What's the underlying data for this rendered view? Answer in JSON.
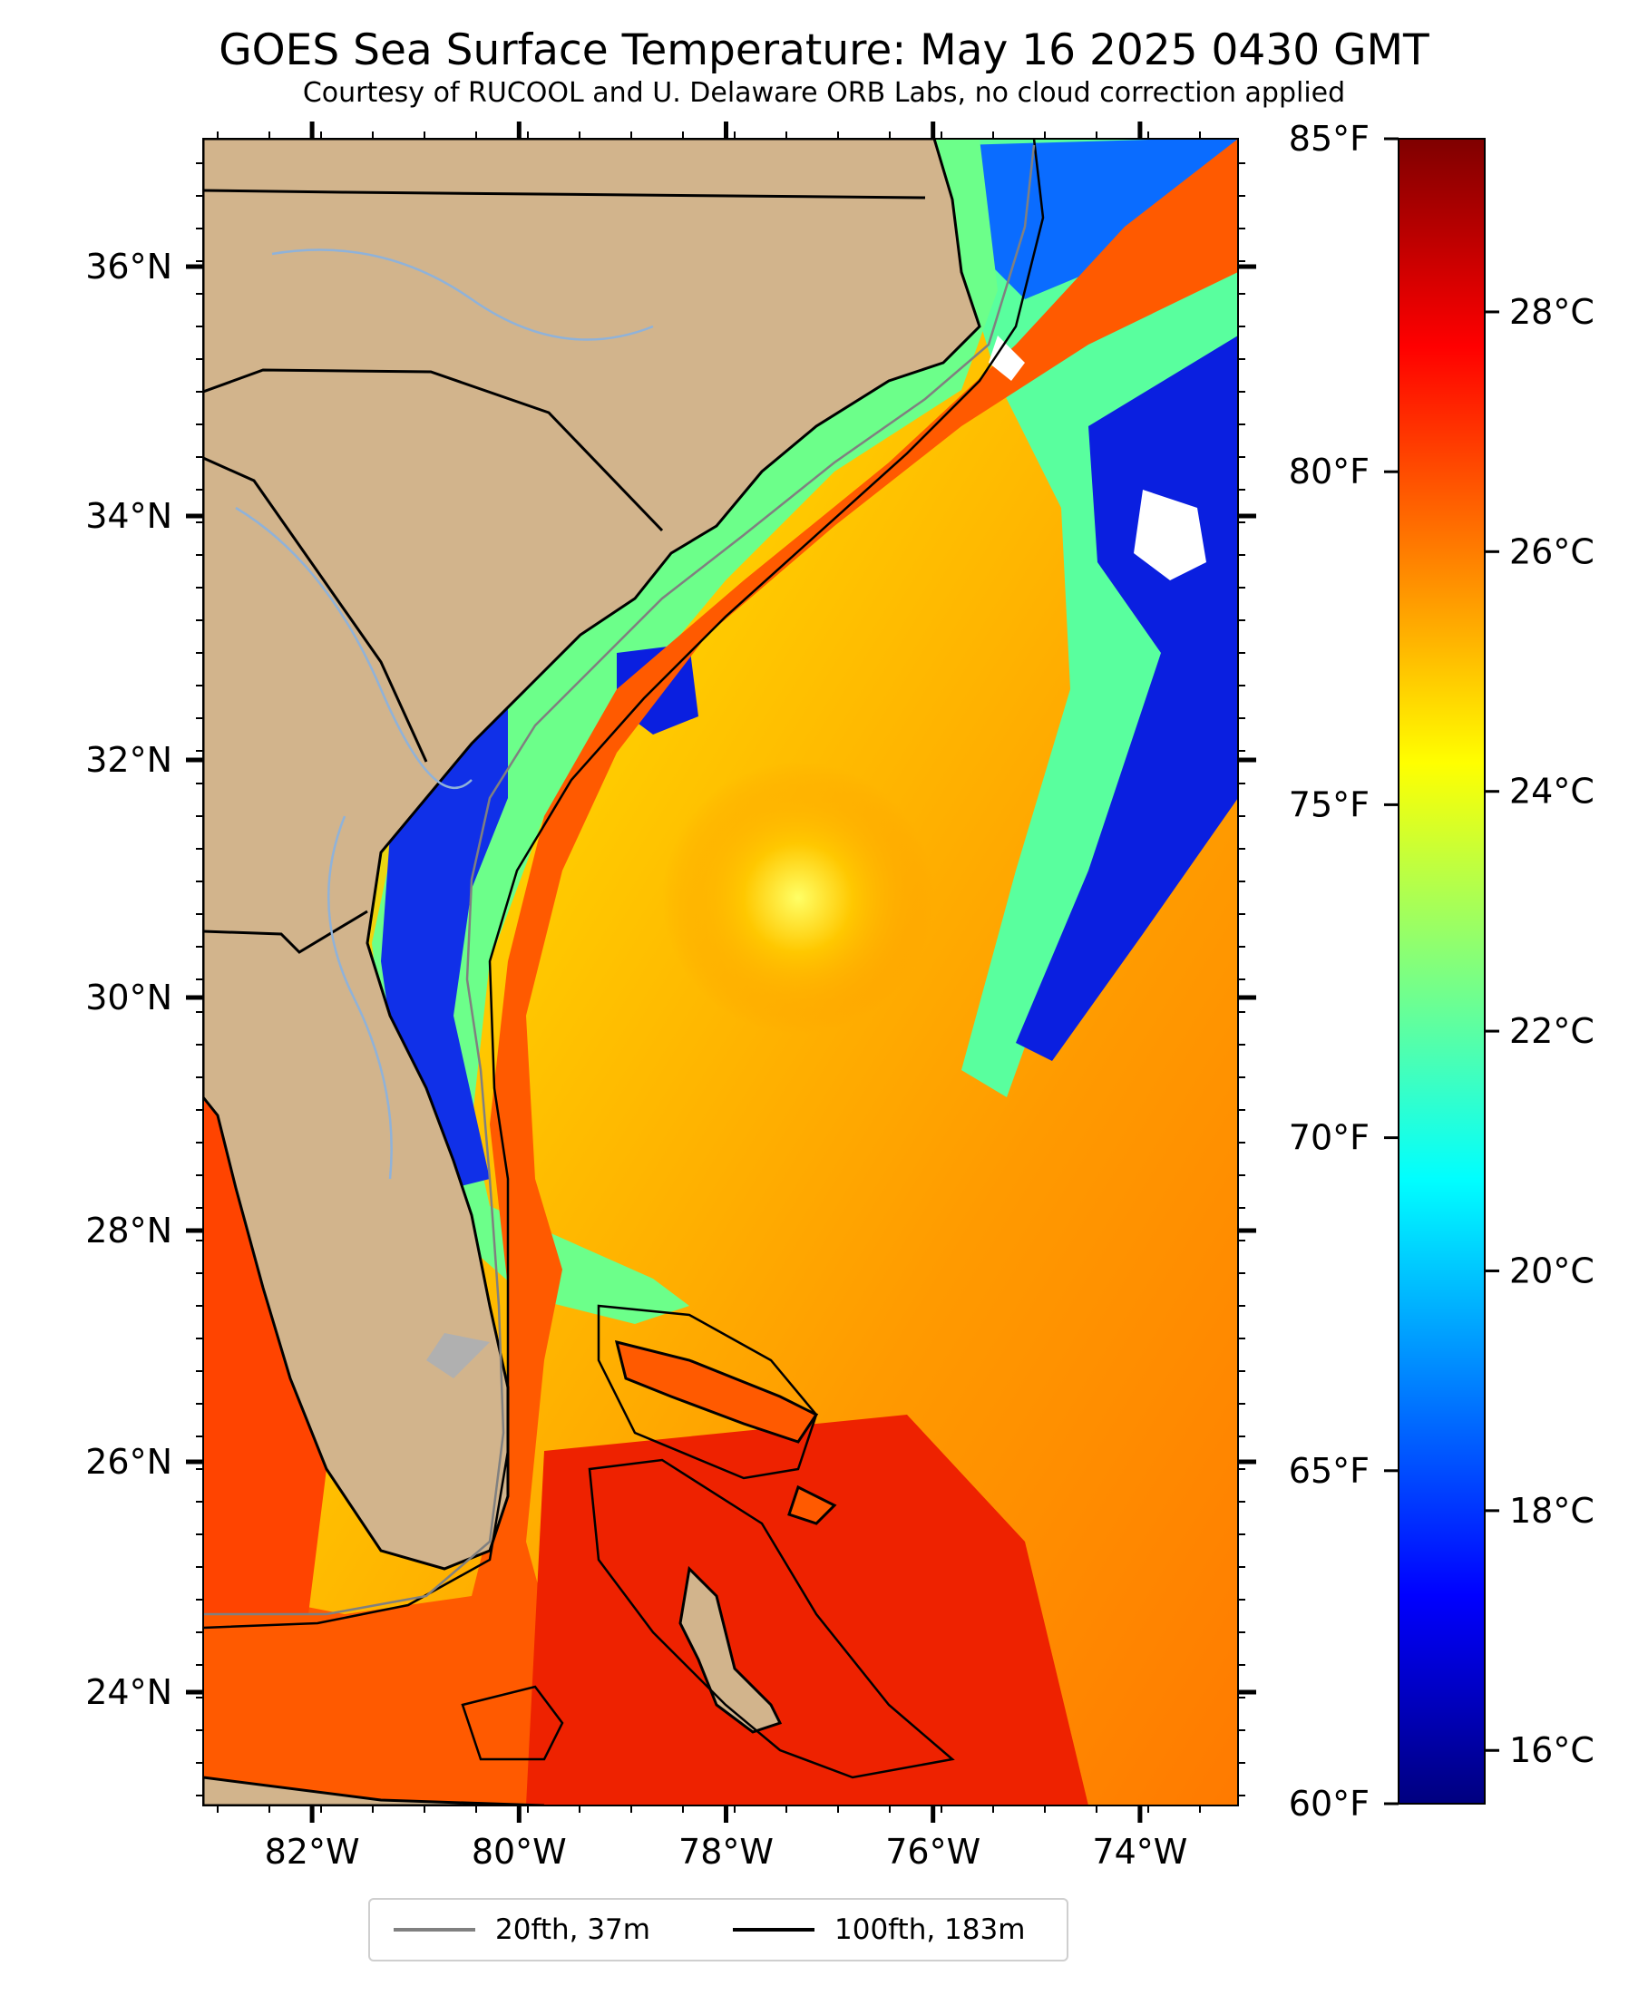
{
  "title": "GOES Sea Surface Temperature: May 16 2025 0430 GMT",
  "subtitle": "Courtesy of RUCOOL and U. Delaware ORB Labs, no cloud correction applied",
  "axes": {
    "lat_ticks": [
      "24°N",
      "26°N",
      "28°N",
      "30°N",
      "32°N",
      "34°N",
      "36°N"
    ],
    "lon_ticks": [
      "82°W",
      "80°W",
      "78°W",
      "76°W",
      "74°W"
    ]
  },
  "colorbar": {
    "fahrenheit_ticks": [
      "85°F",
      "80°F",
      "75°F",
      "70°F",
      "65°F",
      "60°F"
    ],
    "celsius_ticks": [
      "28°C",
      "26°C",
      "24°C",
      "22°C",
      "20°C",
      "18°C",
      "16°C"
    ],
    "colormap": [
      "#00007f",
      "#0000ff",
      "#007fff",
      "#00ffff",
      "#7fff7f",
      "#ffff00",
      "#ff7f00",
      "#ff0000",
      "#7f0000"
    ]
  },
  "colors": {
    "land": "#d2b48c",
    "cloud": "#ffffff",
    "lake": "#b0b0b0",
    "river": "#8fb2d9",
    "contour_20fth": "#808080",
    "contour_100fth": "#000000"
  },
  "legend": {
    "items": [
      {
        "label": "20fth, 37m",
        "color": "#808080"
      },
      {
        "label": "100fth, 183m",
        "color": "#000000"
      }
    ]
  }
}
